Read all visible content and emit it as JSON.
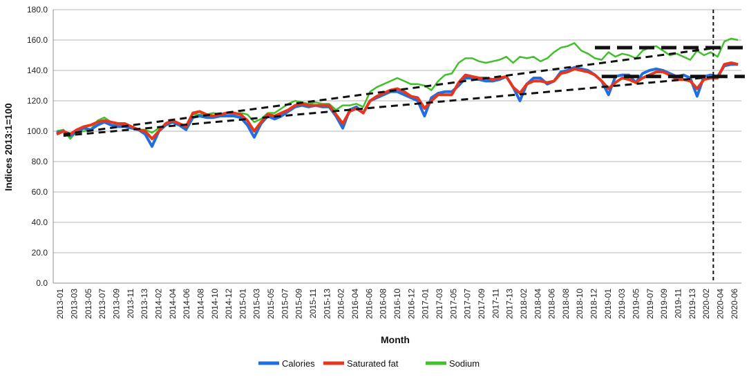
{
  "chart_data": {
    "type": "line",
    "title": "",
    "xlabel": "Month",
    "ylabel": "Indices 2013:1=100",
    "ylim": [
      0,
      180
    ],
    "yticks": [
      "0.0",
      "20.0",
      "40.0",
      "60.0",
      "80.0",
      "100.0",
      "120.0",
      "140.0",
      "160.0",
      "180.0"
    ],
    "grid": "horizontal",
    "legend_position": "bottom",
    "x_tick_labels": [
      "2013-01",
      "2013-03",
      "2013-05",
      "2013-07",
      "2013-09",
      "2013-11",
      "2013-13",
      "2014-02",
      "2014-04",
      "2014-06",
      "2014-08",
      "2014-10",
      "2014-12",
      "2015-01",
      "2015-03",
      "2015-05",
      "2015-07",
      "2015-09",
      "2015-11",
      "2015-13",
      "2016-02",
      "2016-04",
      "2016-06",
      "2016-08",
      "2016-10",
      "2016-12",
      "2017-01",
      "2017-03",
      "2017-05",
      "2017-07",
      "2017-09",
      "2017-11",
      "2017-13",
      "2018-02",
      "2018-04",
      "2018-06",
      "2018-08",
      "2018-10",
      "2018-12",
      "2019-01",
      "2019-03",
      "2019-05",
      "2019-07",
      "2019-09",
      "2019-11",
      "2019-13",
      "2020-02",
      "2020-04",
      "2020-06"
    ],
    "series": [
      {
        "name": "Calories",
        "color": "#1f6fe0",
        "values": [
          99,
          100,
          97,
          100,
          102,
          101,
          104,
          106,
          104,
          103,
          103,
          102,
          101,
          98,
          90,
          100,
          104,
          106,
          104,
          101,
          109,
          110,
          109,
          109,
          110,
          110,
          110,
          109,
          104,
          96,
          105,
          110,
          108,
          110,
          113,
          116,
          117,
          116,
          117,
          116,
          116,
          110,
          102,
          114,
          116,
          112,
          120,
          122,
          124,
          126,
          126,
          124,
          122,
          120,
          110,
          122,
          125,
          126,
          126,
          130,
          135,
          135,
          134,
          133,
          133,
          134,
          136,
          129,
          120,
          131,
          135,
          135,
          131,
          133,
          139,
          140,
          142,
          141,
          140,
          137,
          133,
          124,
          136,
          137,
          137,
          132,
          138,
          140,
          141,
          140,
          138,
          136,
          137,
          135,
          123,
          136,
          137,
          136,
          143,
          144,
          144
        ]
      },
      {
        "name": "Saturated fat",
        "color": "#e8361c",
        "values": [
          98,
          100,
          98,
          101,
          103,
          104,
          106,
          107,
          106,
          105,
          105,
          103,
          101,
          100,
          95,
          100,
          105,
          107,
          105,
          103,
          112,
          113,
          111,
          110,
          111,
          112,
          112,
          111,
          107,
          100,
          106,
          111,
          110,
          112,
          114,
          117,
          118,
          117,
          117,
          117,
          117,
          111,
          105,
          113,
          115,
          112,
          120,
          123,
          125,
          127,
          128,
          126,
          123,
          122,
          115,
          120,
          124,
          124,
          124,
          132,
          137,
          136,
          135,
          135,
          134,
          135,
          136,
          129,
          125,
          131,
          133,
          133,
          132,
          133,
          138,
          139,
          141,
          140,
          139,
          137,
          133,
          128,
          132,
          135,
          134,
          132,
          135,
          137,
          139,
          139,
          137,
          134,
          134,
          133,
          128,
          134,
          135,
          135,
          144,
          145,
          144
        ]
      },
      {
        "name": "Sodium",
        "color": "#41c02b",
        "values": [
          100,
          101,
          95,
          100,
          100,
          101,
          107,
          109,
          106,
          104,
          104,
          102,
          101,
          101,
          99,
          102,
          104,
          106,
          104,
          104,
          111,
          111,
          111,
          112,
          111,
          112,
          111,
          112,
          111,
          106,
          108,
          112,
          112,
          115,
          118,
          120,
          119,
          118,
          119,
          118,
          118,
          114,
          117,
          117,
          118,
          116,
          126,
          129,
          131,
          133,
          135,
          133,
          131,
          131,
          130,
          127,
          133,
          137,
          138,
          145,
          148,
          148,
          146,
          145,
          146,
          147,
          149,
          145,
          149,
          148,
          149,
          146,
          148,
          152,
          155,
          156,
          158,
          153,
          151,
          148,
          147,
          152,
          149,
          151,
          150,
          148,
          153,
          155,
          156,
          153,
          150,
          151,
          149,
          147,
          153,
          150,
          152,
          149,
          159,
          161,
          160
        ]
      }
    ],
    "trend_lines_dashed": [
      {
        "from": [
          1,
          98
        ],
        "to": [
          97,
          155
        ]
      },
      {
        "from": [
          1,
          97
        ],
        "to": [
          97,
          136
        ]
      },
      {
        "from": [
          79,
          155
        ],
        "to": [
          101,
          155
        ]
      },
      {
        "from": [
          80,
          136
        ],
        "to": [
          101,
          136
        ]
      }
    ],
    "vertical_marker_between": [
      "2020-02",
      "2020-04"
    ]
  }
}
